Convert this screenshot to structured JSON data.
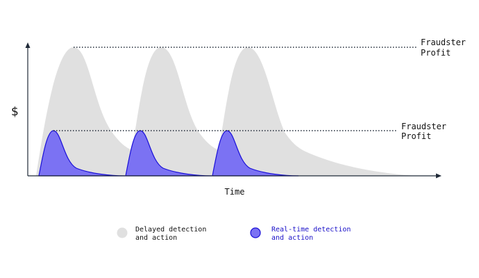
{
  "diagram": {
    "y_axis_label": "$",
    "x_axis_label": "Time",
    "annotations": {
      "high_profit": {
        "line1": "Fraudster",
        "line2": "Profit"
      },
      "low_profit": {
        "line1": "Fraudster",
        "line2": "Profit"
      }
    },
    "legend": {
      "delayed": {
        "line1": "Delayed detection",
        "line2": "and action"
      },
      "realtime": {
        "line1": "Real-time detection",
        "line2": "and action"
      }
    }
  },
  "colors": {
    "delayed_fill": "#e0e0e0",
    "realtime_fill": "#7b72f3",
    "realtime_stroke": "#1a10d8",
    "axis": "#1f2937",
    "text": "#111111",
    "realtime_text": "#1a10c8"
  }
}
